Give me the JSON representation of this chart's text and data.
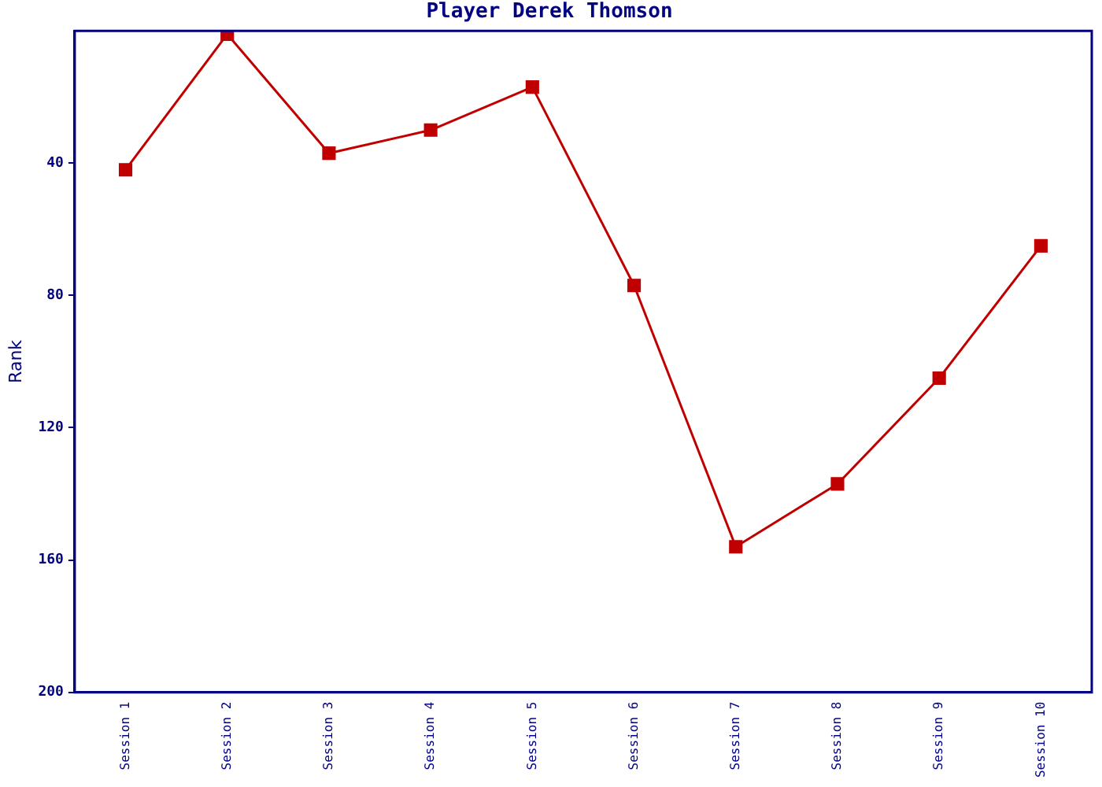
{
  "chart_data": {
    "type": "line",
    "title": "Player Derek Thomson",
    "ylabel": "Rank",
    "categories": [
      "Session 1",
      "Session 2",
      "Session 3",
      "Session 4",
      "Session 5",
      "Session 6",
      "Session 7",
      "Session 8",
      "Session 9",
      "Session 10"
    ],
    "series": [
      {
        "color": "#c00000",
        "values": [
          42,
          1,
          37,
          30,
          17,
          77,
          156,
          137,
          105,
          65
        ]
      }
    ],
    "ylim": [
      200,
      0
    ],
    "yticks": [
      40,
      80,
      120,
      160,
      200
    ],
    "grid": false,
    "legend": false,
    "marker": "square",
    "line_style": "solid"
  }
}
